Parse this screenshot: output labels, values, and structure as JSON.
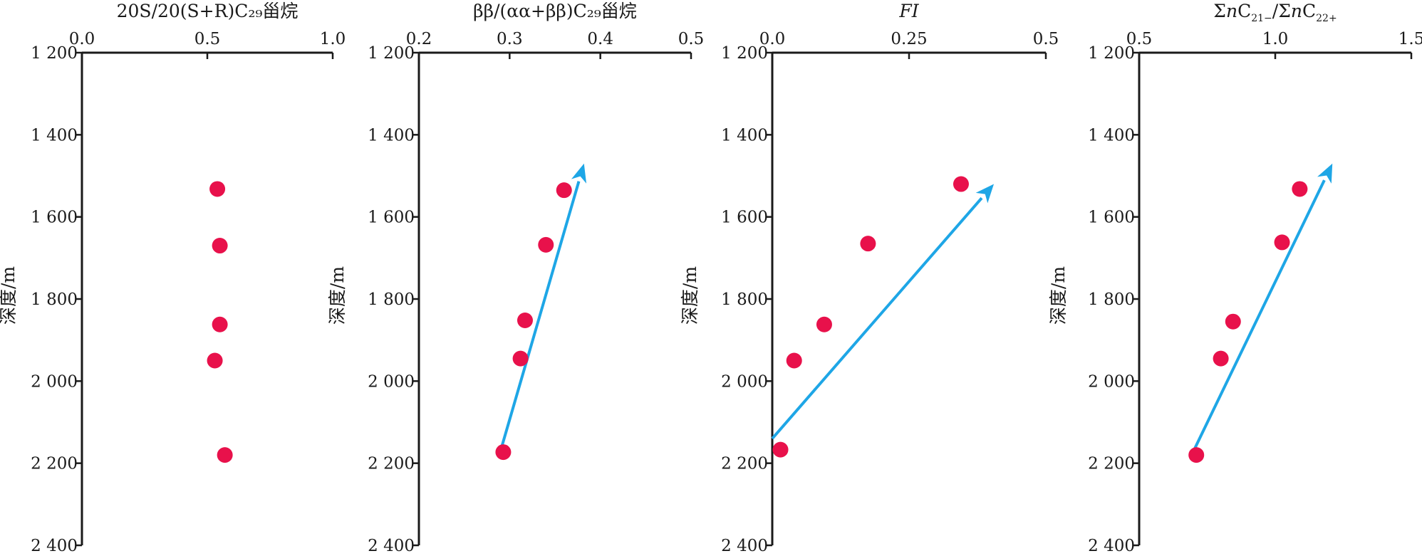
{
  "chart_data": [
    {
      "type": "scatter",
      "title": "20S/20(S+R)C₂₉甾烷",
      "xlim": [
        0,
        1.0
      ],
      "xticks": [
        0.0,
        0.5,
        1.0
      ],
      "xtick_labels": [
        "0.0",
        "0.5",
        "1.0"
      ],
      "ylabel": "深度/m",
      "ylim": [
        1200,
        2400
      ],
      "yticks": [
        1200,
        1400,
        1600,
        1800,
        2000,
        2200,
        2400
      ],
      "ytick_labels": [
        "1 200",
        "1 400",
        "1 600",
        "1 800",
        "2 000",
        "2 200",
        "2 400"
      ],
      "points": [
        {
          "x": 0.54,
          "y": 1532
        },
        {
          "x": 0.55,
          "y": 1670
        },
        {
          "x": 0.55,
          "y": 1862
        },
        {
          "x": 0.53,
          "y": 1950
        },
        {
          "x": 0.57,
          "y": 2180
        }
      ],
      "trend": null
    },
    {
      "type": "scatter",
      "title": "ββ/(αα+ββ)C₂₉甾烷",
      "xlim": [
        0.2,
        0.5
      ],
      "xticks": [
        0.2,
        0.3,
        0.4,
        0.5
      ],
      "xtick_labels": [
        "0.2",
        "0.3",
        "0.4",
        "0.5"
      ],
      "ylabel": "深度/m",
      "ylim": [
        1200,
        2400
      ],
      "yticks": [
        1200,
        1400,
        1600,
        1800,
        2000,
        2200,
        2400
      ],
      "ytick_labels": [
        "1 200",
        "1 400",
        "1 600",
        "1 800",
        "2 000",
        "2 200",
        "2 400"
      ],
      "points": [
        {
          "x": 0.36,
          "y": 1535
        },
        {
          "x": 0.34,
          "y": 1668
        },
        {
          "x": 0.317,
          "y": 1852
        },
        {
          "x": 0.312,
          "y": 1945
        },
        {
          "x": 0.293,
          "y": 2173
        }
      ],
      "trend": {
        "from": {
          "x": 0.29,
          "y": 2170
        },
        "to": {
          "x": 0.382,
          "y": 1470
        }
      }
    },
    {
      "type": "scatter",
      "title": "FI",
      "title_italic": true,
      "xlim": [
        0,
        0.5
      ],
      "xticks": [
        0,
        0.25,
        0.5
      ],
      "xtick_labels": [
        "0.0",
        "0.25",
        "0.5"
      ],
      "ylabel": "深度/m",
      "ylim": [
        1200,
        2400
      ],
      "yticks": [
        1200,
        1400,
        1600,
        1800,
        2000,
        2200,
        2400
      ],
      "ytick_labels": [
        "1 200",
        "1 400",
        "1 600",
        "1 800",
        "2 000",
        "2 200",
        "2 400"
      ],
      "points": [
        {
          "x": 0.345,
          "y": 1520
        },
        {
          "x": 0.175,
          "y": 1665
        },
        {
          "x": 0.095,
          "y": 1862
        },
        {
          "x": 0.04,
          "y": 1950
        },
        {
          "x": 0.015,
          "y": 2167
        }
      ],
      "trend": {
        "from": {
          "x": 0.0,
          "y": 2140
        },
        "to": {
          "x": 0.405,
          "y": 1520
        }
      }
    },
    {
      "type": "scatter",
      "title": "ΣnC₂₁₋/ΣnC₂₂₊",
      "title_parts": [
        "Σ",
        "n",
        "C",
        "21−",
        "/Σ",
        "n",
        "C",
        "22+"
      ],
      "xlim": [
        0.5,
        1.5
      ],
      "xticks": [
        0.5,
        1.0,
        1.5
      ],
      "xtick_labels": [
        "0.5",
        "1.0",
        "1.5"
      ],
      "ylabel": "深度/m",
      "ylim": [
        1200,
        2400
      ],
      "yticks": [
        1200,
        1400,
        1600,
        1800,
        2000,
        2200,
        2400
      ],
      "ytick_labels": [
        "1 200",
        "1 400",
        "1 600",
        "1 800",
        "2 000",
        "2 200",
        "2 400"
      ],
      "points": [
        {
          "x": 1.09,
          "y": 1532
        },
        {
          "x": 1.025,
          "y": 1662
        },
        {
          "x": 0.845,
          "y": 1855
        },
        {
          "x": 0.8,
          "y": 1945
        },
        {
          "x": 0.71,
          "y": 2180
        }
      ],
      "trend": {
        "from": {
          "x": 0.7,
          "y": 2170
        },
        "to": {
          "x": 1.21,
          "y": 1470
        }
      }
    }
  ],
  "colors": {
    "point": "#e8114b",
    "trend": "#1ea6e6",
    "axis": "#1a1a1a"
  }
}
